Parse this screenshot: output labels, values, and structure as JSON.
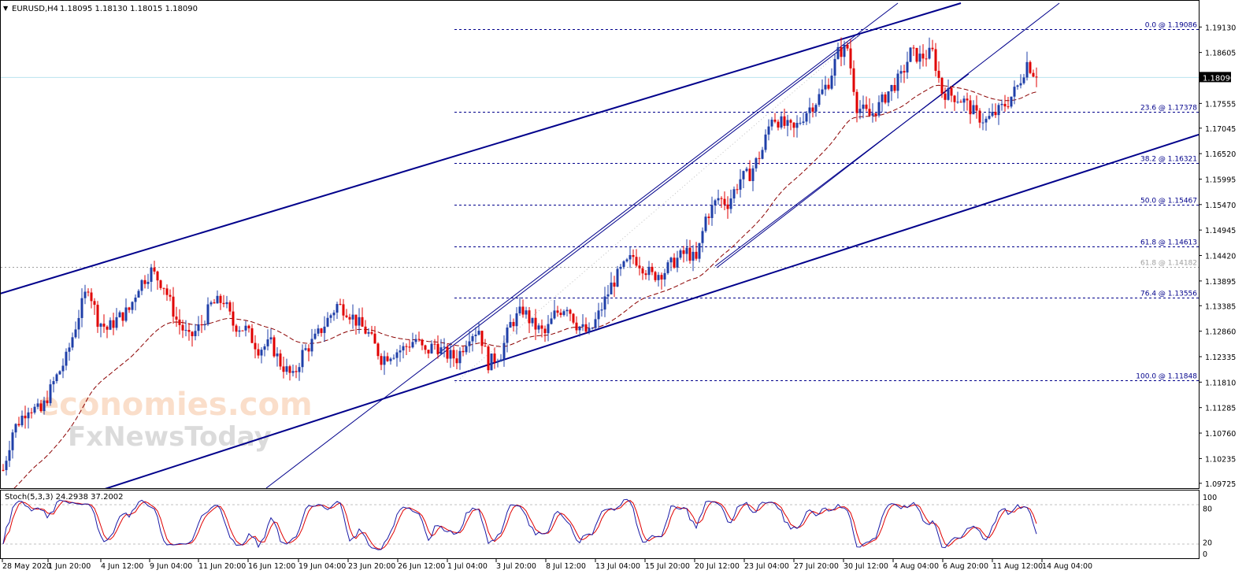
{
  "header": {
    "menu_glyph": "▼",
    "symbol": "EURUSD,H4",
    "ohlc": "1.18095 1.18130 1.18015 1.18090"
  },
  "watermark": {
    "line1": "economies.com",
    "line2": "FxNewsToday"
  },
  "price_axis": {
    "ticks": [
      "1.19130",
      "1.18605",
      "1.17555",
      "1.17045",
      "1.16520",
      "1.15995",
      "1.15470",
      "1.14945",
      "1.14420",
      "1.13895",
      "1.13385",
      "1.12860",
      "1.12335",
      "1.11810",
      "1.11285",
      "1.10760",
      "1.10235",
      "1.09725"
    ],
    "current_price": "1.18090"
  },
  "fib_levels": [
    {
      "label": "0.0 @ 1.19086",
      "value": 1.19086,
      "style": "dashed",
      "color": "#00008b"
    },
    {
      "label": "23.6 @ 1.17378",
      "value": 1.17378,
      "style": "dashed",
      "color": "#00008b"
    },
    {
      "label": "38.2 @ 1.16321",
      "value": 1.16321,
      "style": "dashed",
      "color": "#00008b"
    },
    {
      "label": "50.0 @ 1.15467",
      "value": 1.15467,
      "style": "dashed",
      "color": "#00008b"
    },
    {
      "label": "61.8 @ 1.14613",
      "value": 1.14613,
      "style": "dashed",
      "color": "#00008b"
    },
    {
      "label": "61.8 @ 1.14182",
      "value": 1.14182,
      "style": "dotted",
      "color": "#a0a0a0"
    },
    {
      "label": "76.4 @ 1.13556",
      "value": 1.13556,
      "style": "dashed",
      "color": "#00008b"
    },
    {
      "label": "100.0 @ 1.11848",
      "value": 1.11848,
      "style": "dashed",
      "color": "#00008b"
    }
  ],
  "stochastic": {
    "label": "Stoch(5,3,3) 24.2938 37.2002",
    "axis_ticks": [
      "100",
      "80",
      "20",
      "0"
    ]
  },
  "time_axis": {
    "labels": [
      "28 May 2020",
      "1 Jun 20:00",
      "4 Jun 12:00",
      "9 Jun 04:00",
      "11 Jun 20:00",
      "16 Jun 12:00",
      "19 Jun 04:00",
      "23 Jun 20:00",
      "26 Jun 12:00",
      "1 Jul 04:00",
      "3 Jul 20:00",
      "8 Jul 12:00",
      "13 Jul 04:00",
      "15 Jul 20:00",
      "20 Jul 12:00",
      "23 Jul 04:00",
      "27 Jul 20:00",
      "30 Jul 12:00",
      "4 Aug 04:00",
      "6 Aug 20:00",
      "11 Aug 12:00",
      "14 Aug 04:00"
    ]
  },
  "colors": {
    "bull": "#1f3fa8",
    "bear": "#e00000",
    "channel": "#00008b",
    "ma": "#8b0000",
    "stoch_main": "#1a1aa6",
    "stoch_signal": "#e00000",
    "current_line": "#b9e3ee"
  },
  "chart_data": {
    "type": "candlestick",
    "symbol": "EURUSD",
    "timeframe": "H4",
    "y_range": [
      1.0965,
      1.194
    ],
    "anchor_closes": [
      [
        0,
        1.1
      ],
      [
        3,
        1.108
      ],
      [
        8,
        1.113
      ],
      [
        12,
        1.112
      ],
      [
        16,
        1.118
      ],
      [
        20,
        1.123
      ],
      [
        24,
        1.132
      ],
      [
        27,
        1.138
      ],
      [
        30,
        1.131
      ],
      [
        33,
        1.129
      ],
      [
        36,
        1.131
      ],
      [
        40,
        1.133
      ],
      [
        43,
        1.138
      ],
      [
        47,
        1.141
      ],
      [
        51,
        1.138
      ],
      [
        55,
        1.131
      ],
      [
        59,
        1.127
      ],
      [
        63,
        1.13
      ],
      [
        66,
        1.134
      ],
      [
        70,
        1.135
      ],
      [
        73,
        1.13
      ],
      [
        77,
        1.129
      ],
      [
        81,
        1.125
      ],
      [
        85,
        1.126
      ],
      [
        88,
        1.122
      ],
      [
        92,
        1.119
      ],
      [
        95,
        1.124
      ],
      [
        99,
        1.127
      ],
      [
        102,
        1.13
      ],
      [
        106,
        1.134
      ],
      [
        109,
        1.133
      ],
      [
        113,
        1.13
      ],
      [
        116,
        1.128
      ],
      [
        120,
        1.123
      ],
      [
        123,
        1.124
      ],
      [
        127,
        1.125
      ],
      [
        131,
        1.127
      ],
      [
        134,
        1.124
      ],
      [
        137,
        1.126
      ],
      [
        140,
        1.124
      ],
      [
        144,
        1.123
      ],
      [
        148,
        1.128
      ],
      [
        151,
        1.129
      ],
      [
        154,
        1.122
      ],
      [
        158,
        1.124
      ],
      [
        161,
        1.13
      ],
      [
        165,
        1.133
      ],
      [
        168,
        1.13
      ],
      [
        172,
        1.128
      ],
      [
        175,
        1.132
      ],
      [
        179,
        1.134
      ],
      [
        182,
        1.13
      ],
      [
        186,
        1.128
      ],
      [
        189,
        1.132
      ],
      [
        193,
        1.138
      ],
      [
        196,
        1.141
      ],
      [
        200,
        1.144
      ],
      [
        203,
        1.142
      ],
      [
        206,
        1.14
      ],
      [
        210,
        1.141
      ],
      [
        213,
        1.143
      ],
      [
        217,
        1.145
      ],
      [
        220,
        1.143
      ],
      [
        223,
        1.152
      ],
      [
        227,
        1.156
      ],
      [
        230,
        1.155
      ],
      [
        234,
        1.16
      ],
      [
        237,
        1.161
      ],
      [
        241,
        1.166
      ],
      [
        244,
        1.173
      ],
      [
        248,
        1.171
      ],
      [
        251,
        1.17
      ],
      [
        255,
        1.174
      ],
      [
        258,
        1.176
      ],
      [
        262,
        1.18
      ],
      [
        265,
        1.186
      ],
      [
        268,
        1.187
      ],
      [
        271,
        1.175
      ],
      [
        275,
        1.173
      ],
      [
        278,
        1.175
      ],
      [
        281,
        1.178
      ],
      [
        285,
        1.181
      ],
      [
        288,
        1.186
      ],
      [
        291,
        1.185
      ],
      [
        295,
        1.186
      ],
      [
        298,
        1.178
      ],
      [
        302,
        1.177
      ],
      [
        305,
        1.176
      ],
      [
        309,
        1.173
      ],
      [
        312,
        1.172
      ],
      [
        316,
        1.174
      ],
      [
        319,
        1.176
      ],
      [
        322,
        1.179
      ],
      [
        325,
        1.184
      ],
      [
        328,
        1.181
      ]
    ]
  }
}
